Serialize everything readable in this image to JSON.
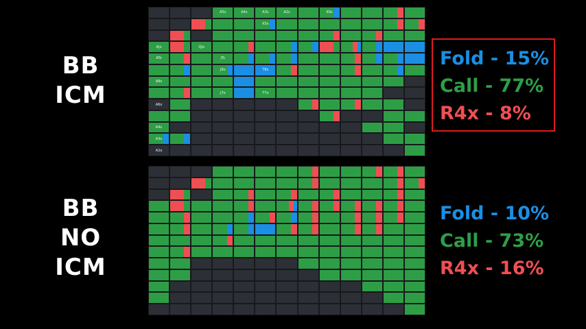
{
  "colors": {
    "fold": "#1a8fe3",
    "call": "#2e9e46",
    "raise": "#ef4f53",
    "empty": "#2c2f35",
    "box": "#e01b1b"
  },
  "top_panel": {
    "label_lines": [
      "BB",
      "ICM"
    ],
    "stats": [
      {
        "text": "Fold - 15%",
        "action": "fold"
      },
      {
        "text": "Call - 77%",
        "action": "call"
      },
      {
        "text": "R4x - 8%",
        "action": "raise"
      }
    ],
    "grid": [
      [
        "E",
        "E",
        "E",
        "C",
        "C",
        "C",
        "C",
        "C",
        "CF",
        "C",
        "C",
        "CR",
        "C"
      ],
      [
        "E",
        "E",
        "RC",
        "C",
        "C",
        "CF",
        "C",
        "C",
        "C",
        "C",
        "C",
        "CR",
        "CR"
      ],
      [
        "E",
        "RC",
        "E",
        "C",
        "C",
        "C",
        "C",
        "C",
        "CR",
        "C",
        "CR",
        "C",
        "C"
      ],
      [
        "C",
        "RC",
        "C",
        "C",
        "CR",
        "C",
        "CF",
        "CF",
        "RC",
        "CRF",
        "CF",
        "F",
        "F"
      ],
      [
        "C",
        "CR",
        "C",
        "C",
        "CF",
        "CF",
        "CF",
        "C",
        "C",
        "CR",
        "CF",
        "CF",
        "F"
      ],
      [
        "C",
        "CF",
        "C",
        "CF",
        "F",
        "F",
        "CR",
        "C",
        "C",
        "CR",
        "C",
        "CF",
        "C"
      ],
      [
        "C",
        "C",
        "C",
        "C",
        "F",
        "C",
        "C",
        "C",
        "C",
        "C",
        "C",
        "C",
        "E"
      ],
      [
        "C",
        "CR",
        "C",
        "C",
        "F",
        "C",
        "C",
        "C",
        "C",
        "C",
        "C",
        "E",
        "E"
      ],
      [
        "E",
        "C",
        "E",
        "E",
        "E",
        "E",
        "E",
        "CR",
        "C",
        "CR",
        "C",
        "C",
        "E"
      ],
      [
        "C",
        "C",
        "E",
        "E",
        "E",
        "E",
        "E",
        "E",
        "CR",
        "E",
        "E",
        "C",
        "C"
      ],
      [
        "C",
        "E",
        "E",
        "E",
        "E",
        "E",
        "E",
        "E",
        "E",
        "E",
        "C",
        "C",
        "E"
      ],
      [
        "CF",
        "CF",
        "E",
        "E",
        "E",
        "E",
        "E",
        "E",
        "E",
        "E",
        "E",
        "C",
        "C"
      ],
      [
        "E",
        "E",
        "E",
        "E",
        "E",
        "E",
        "E",
        "E",
        "E",
        "E",
        "E",
        "E",
        "C"
      ]
    ],
    "cell_labels": [
      [
        "",
        "",
        "",
        "A5s",
        "A4s",
        "A3s",
        "A2s",
        "",
        "K9s",
        "",
        "",
        "",
        ""
      ],
      [
        "",
        "",
        "",
        "",
        "",
        "K5s",
        "",
        "",
        "",
        "",
        "",
        "",
        ""
      ],
      [
        "",
        "",
        "",
        "",
        "",
        "",
        "",
        "",
        "",
        "",
        "",
        "",
        ""
      ],
      [
        "AJo",
        "",
        "QJo",
        "",
        "",
        "",
        "",
        "",
        "",
        "",
        "",
        "",
        ""
      ],
      [
        "ATo",
        "",
        "",
        "JTs",
        "",
        "",
        "",
        "",
        "",
        "",
        "",
        "",
        ""
      ],
      [
        "",
        "",
        "",
        "J9o",
        "",
        "T8s",
        "",
        "",
        "",
        "",
        "",
        "",
        ""
      ],
      [
        "A8o",
        "",
        "",
        "",
        "",
        "",
        "",
        "",
        "",
        "",
        "",
        "",
        ""
      ],
      [
        "",
        "",
        "",
        "J7o",
        "",
        "T7o",
        "",
        "",
        "",
        "",
        "",
        "",
        ""
      ],
      [
        "A6o",
        "",
        "",
        "",
        "",
        "",
        "",
        "",
        "",
        "",
        "",
        "",
        ""
      ],
      [
        "",
        "",
        "",
        "",
        "",
        "",
        "",
        "",
        "",
        "",
        "",
        "",
        ""
      ],
      [
        "A4o",
        "",
        "",
        "",
        "",
        "",
        "",
        "",
        "",
        "",
        "",
        "",
        ""
      ],
      [
        "A3o",
        "",
        "",
        "",
        "",
        "",
        "",
        "",
        "",
        "",
        "",
        "",
        ""
      ],
      [
        "A2o",
        "",
        "",
        "",
        "",
        "",
        "",
        "",
        "",
        "",
        "",
        "",
        ""
      ]
    ]
  },
  "bottom_panel": {
    "label_lines": [
      "BB",
      "NO",
      "ICM"
    ],
    "stats": [
      {
        "text": "Fold - 10%",
        "action": "fold"
      },
      {
        "text": "Call - 73%",
        "action": "call"
      },
      {
        "text": "R4x - 16%",
        "action": "raise"
      }
    ],
    "grid": [
      [
        "E",
        "E",
        "E",
        "C",
        "C",
        "C",
        "C",
        "CR",
        "C",
        "C",
        "CR",
        "CR",
        "C"
      ],
      [
        "E",
        "E",
        "RC",
        "C",
        "C",
        "C",
        "C",
        "CR",
        "C",
        "C",
        "C",
        "CR",
        "CR"
      ],
      [
        "E",
        "RC",
        "E",
        "C",
        "CR",
        "C",
        "CR",
        "C",
        "CR",
        "C",
        "C",
        "CR",
        "C"
      ],
      [
        "C",
        "RC",
        "C",
        "C",
        "CR",
        "C",
        "CRF",
        "CR",
        "CR",
        "CR",
        "CR",
        "CR",
        "C"
      ],
      [
        "C",
        "CR",
        "C",
        "C",
        "CF",
        "CR",
        "CF",
        "CR",
        "C",
        "CR",
        "CR",
        "CR",
        "C"
      ],
      [
        "C",
        "CR",
        "C",
        "CF",
        "CF",
        "F",
        "CR",
        "CR",
        "C",
        "CR",
        "CR",
        "C",
        "C"
      ],
      [
        "C",
        "C",
        "C",
        "CR",
        "C",
        "C",
        "C",
        "C",
        "C",
        "C",
        "C",
        "C",
        "C"
      ],
      [
        "C",
        "CR",
        "C",
        "C",
        "C",
        "C",
        "C",
        "C",
        "C",
        "C",
        "C",
        "C",
        "C"
      ],
      [
        "C",
        "C",
        "E",
        "E",
        "E",
        "E",
        "E",
        "C",
        "C",
        "C",
        "C",
        "C",
        "C"
      ],
      [
        "C",
        "C",
        "E",
        "E",
        "E",
        "E",
        "E",
        "E",
        "C",
        "C",
        "C",
        "C",
        "C"
      ],
      [
        "C",
        "E",
        "E",
        "E",
        "E",
        "E",
        "E",
        "E",
        "E",
        "E",
        "C",
        "C",
        "C"
      ],
      [
        "C",
        "E",
        "E",
        "E",
        "E",
        "E",
        "E",
        "E",
        "E",
        "E",
        "E",
        "C",
        "C"
      ],
      [
        "E",
        "E",
        "E",
        "E",
        "E",
        "E",
        "E",
        "E",
        "E",
        "E",
        "E",
        "E",
        "C"
      ]
    ],
    "cell_labels": [
      [
        "",
        "",
        "",
        "",
        "",
        "",
        "",
        "",
        "",
        "",
        "",
        "",
        ""
      ],
      [
        "",
        "",
        "",
        "",
        "",
        "",
        "",
        "",
        "",
        "",
        "",
        "",
        ""
      ],
      [
        "",
        "",
        "",
        "",
        "",
        "",
        "",
        "",
        "",
        "",
        "",
        "",
        ""
      ],
      [
        "",
        "",
        "",
        "",
        "",
        "",
        "",
        "",
        "",
        "",
        "",
        "",
        ""
      ],
      [
        "",
        "",
        "",
        "",
        "",
        "",
        "",
        "",
        "",
        "",
        "",
        "",
        ""
      ],
      [
        "",
        "",
        "",
        "",
        "",
        "",
        "",
        "",
        "",
        "",
        "",
        "",
        ""
      ],
      [
        "",
        "",
        "",
        "",
        "",
        "",
        "",
        "",
        "",
        "",
        "",
        "",
        ""
      ],
      [
        "",
        "",
        "",
        "",
        "",
        "",
        "",
        "",
        "",
        "",
        "",
        "",
        ""
      ],
      [
        "",
        "",
        "",
        "",
        "",
        "",
        "",
        "",
        "",
        "",
        "",
        "",
        ""
      ],
      [
        "",
        "",
        "",
        "",
        "",
        "",
        "",
        "",
        "",
        "",
        "",
        "",
        ""
      ],
      [
        "",
        "",
        "",
        "",
        "",
        "",
        "",
        "",
        "",
        "",
        "",
        "",
        ""
      ],
      [
        "",
        "",
        "",
        "",
        "",
        "",
        "",
        "",
        "",
        "",
        "",
        "",
        ""
      ],
      [
        "",
        "",
        "",
        "",
        "",
        "",
        "",
        "",
        "",
        "",
        "",
        "",
        ""
      ]
    ]
  }
}
